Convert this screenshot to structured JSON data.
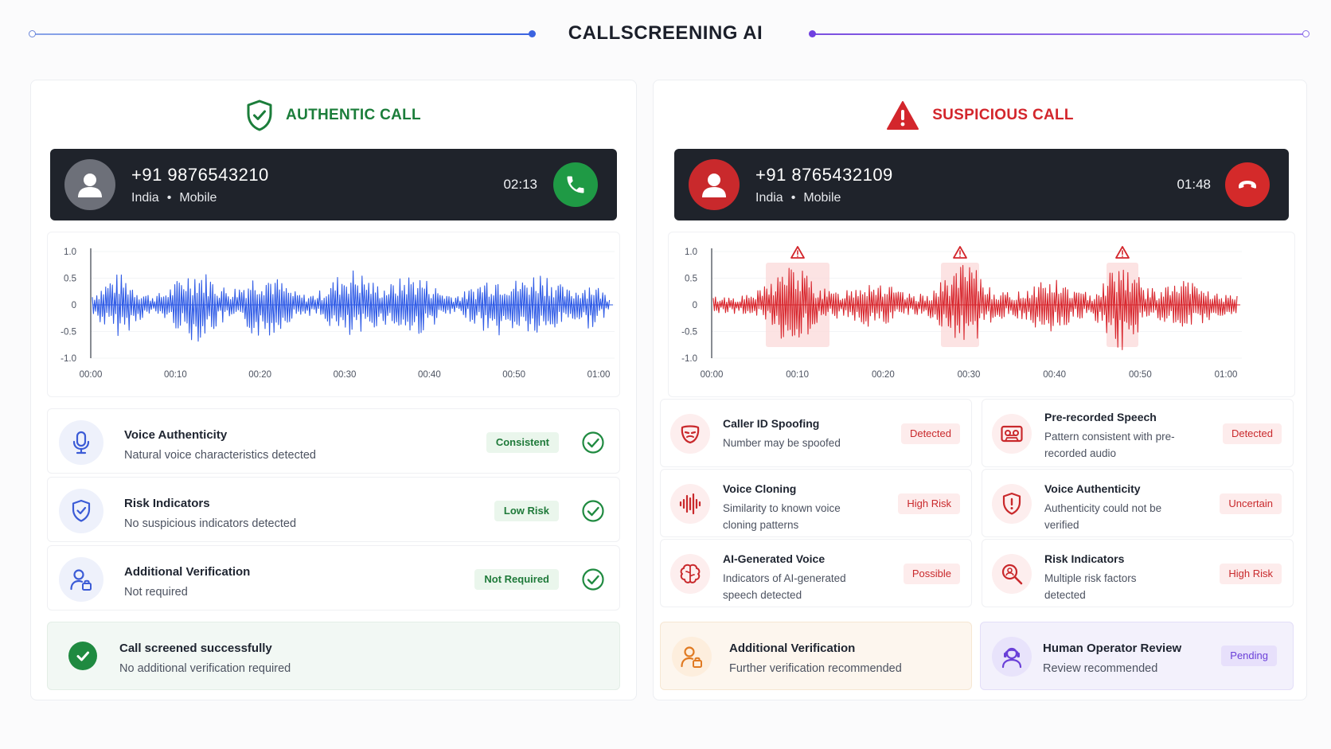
{
  "header": {
    "title": "CALLSCREENING AI"
  },
  "colors": {
    "authentic": "#1b7d3a",
    "suspicious": "#d3262c",
    "wave_blue": "#2f5be6",
    "wave_red": "#d8262d"
  },
  "authentic": {
    "title": "AUTHENTIC CALL",
    "caller": {
      "number": "+91 9876543210",
      "country": "India",
      "sep": "•",
      "line_type": "Mobile",
      "duration": "02:13"
    },
    "chart": {
      "y_ticks": [
        "1.0",
        "0.5",
        "0",
        "-0.5",
        "-1.0"
      ],
      "x_ticks": [
        "00:00",
        "00:10",
        "00:20",
        "00:30",
        "00:40",
        "00:50",
        "01:00"
      ]
    },
    "checks": [
      {
        "title": "Voice Authenticity",
        "subtitle": "Natural voice characteristics detected",
        "badge": "Consistent",
        "icon": "microphone-icon"
      },
      {
        "title": "Risk Indicators",
        "subtitle": "No suspicious indicators detected",
        "badge": "Low Risk",
        "icon": "shield-check-icon"
      },
      {
        "title": "Additional Verification",
        "subtitle": "Not required",
        "badge": "Not Required",
        "icon": "user-lock-icon"
      }
    ],
    "result": {
      "title": "Call screened successfully",
      "subtitle": "No additional verification required"
    }
  },
  "suspicious": {
    "title": "SUSPICIOUS CALL",
    "caller": {
      "number": "+91 8765432109",
      "country": "India",
      "sep": "•",
      "line_type": "Mobile",
      "duration": "01:48"
    },
    "chart": {
      "y_ticks": [
        "1.0",
        "0.5",
        "0",
        "-0.5",
        "-1.0"
      ],
      "x_ticks": [
        "00:00",
        "00:10",
        "00:20",
        "00:30",
        "00:40",
        "00:50",
        "01:00"
      ]
    },
    "findings": [
      {
        "title": "Caller ID Spoofing",
        "subtitle": "Number may be spoofed",
        "badge": "Detected",
        "icon": "mask-icon"
      },
      {
        "title": "Pre-recorded Speech",
        "subtitle": "Pattern consistent with pre-recorded audio",
        "badge": "Detected",
        "icon": "tape-icon"
      },
      {
        "title": "Voice Cloning",
        "subtitle": "Similarity to known voice cloning patterns",
        "badge": "High Risk",
        "icon": "soundwave-icon"
      },
      {
        "title": "Voice Authenticity",
        "subtitle": "Authenticity could not be verified",
        "badge": "Uncertain",
        "icon": "shield-alert-icon"
      },
      {
        "title": "AI-Generated Voice",
        "subtitle": "Indicators of AI-generated speech detected",
        "badge": "Possible",
        "icon": "brain-icon"
      },
      {
        "title": "Risk Indicators",
        "subtitle": "Multiple risk factors detected",
        "badge": "High Risk",
        "icon": "search-risk-icon"
      }
    ],
    "verification": {
      "title": "Additional Verification",
      "subtitle": "Further verification recommended"
    },
    "review": {
      "title": "Human Operator Review",
      "subtitle": "Review recommended",
      "badge": "Pending"
    }
  }
}
